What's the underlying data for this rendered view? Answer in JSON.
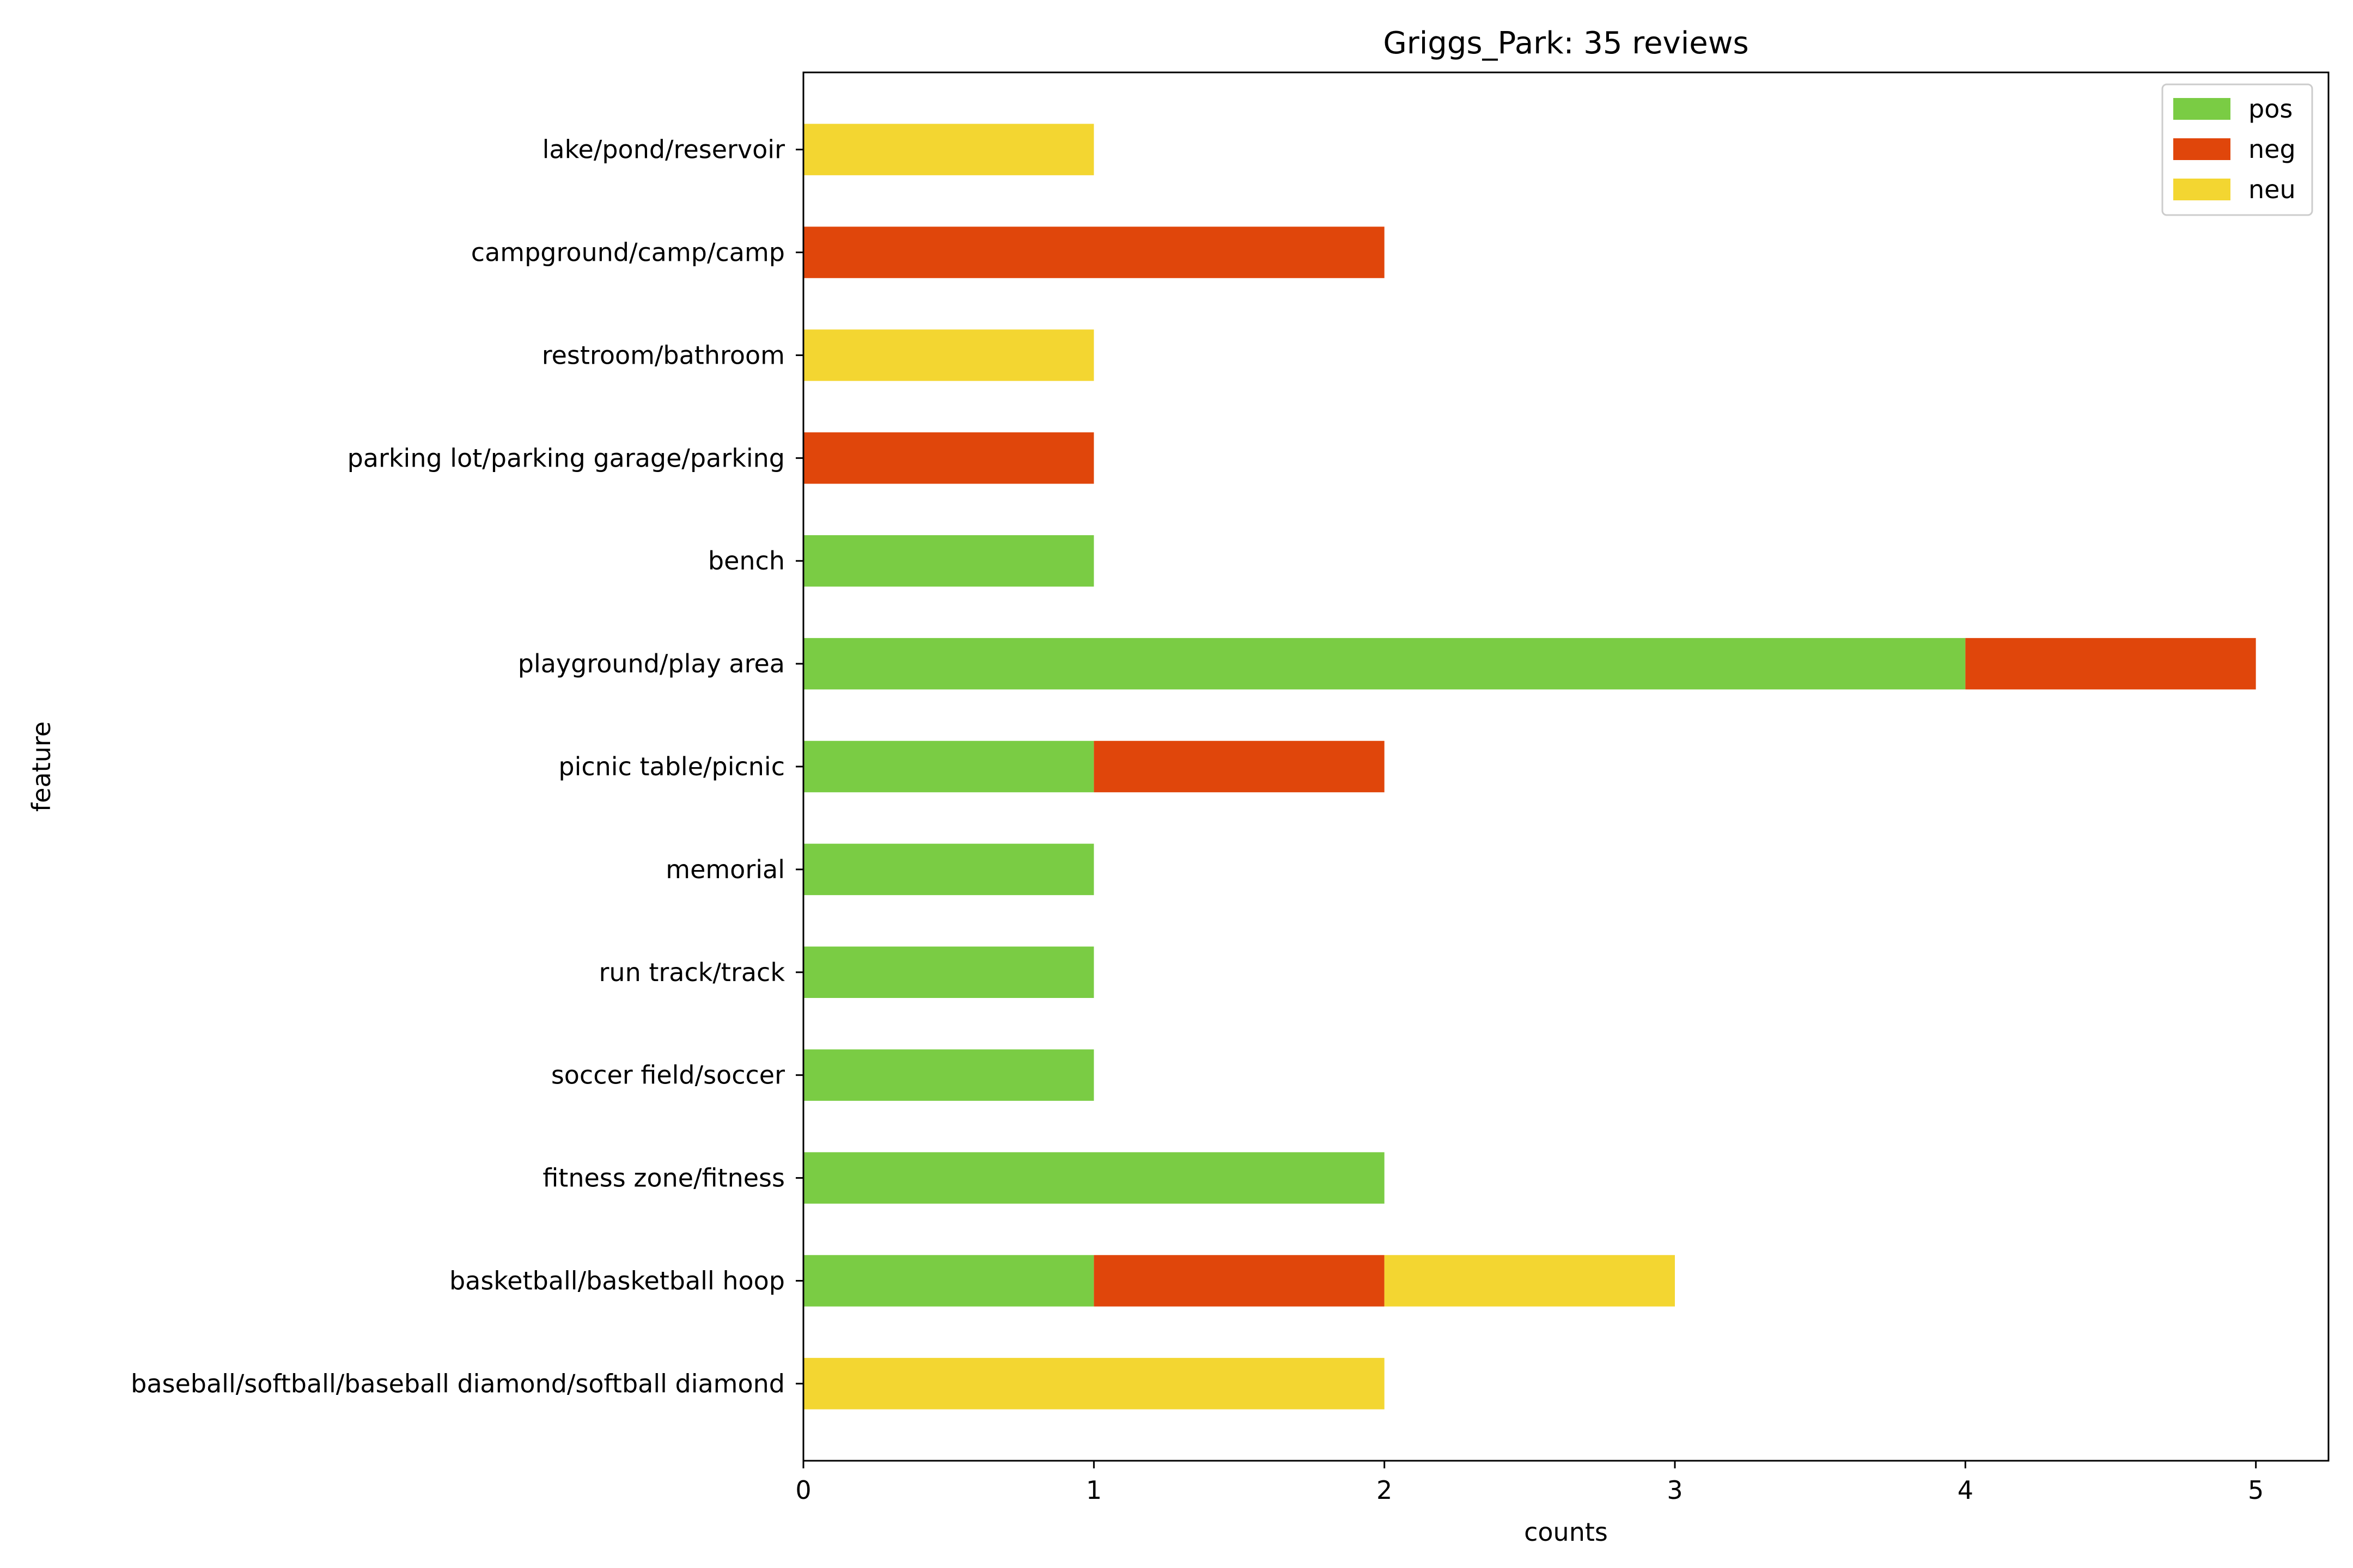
{
  "chart_data": {
    "type": "bar",
    "orientation": "horizontal",
    "stacked": true,
    "title": "Griggs_Park: 35 reviews",
    "xlabel": "counts",
    "ylabel": "feature",
    "xlim": [
      0,
      5.25
    ],
    "xticks": [
      0,
      1,
      2,
      3,
      4,
      5
    ],
    "grid": false,
    "legend_position": "top-right",
    "categories": [
      "baseball/softball/baseball diamond/softball diamond",
      "basketball/basketball hoop",
      "fitness zone/fitness",
      "soccer field/soccer",
      "run track/track",
      "memorial",
      "picnic table/picnic",
      "playground/play area",
      "bench",
      "parking lot/parking garage/parking",
      "restroom/bathroom",
      "campground/camp/camp",
      "lake/pond/reservoir"
    ],
    "series": [
      {
        "name": "pos",
        "color": "#7acc44",
        "values": [
          0,
          1,
          2,
          1,
          1,
          1,
          1,
          4,
          1,
          0,
          0,
          0,
          0
        ]
      },
      {
        "name": "neg",
        "color": "#e0460b",
        "values": [
          0,
          1,
          0,
          0,
          0,
          0,
          1,
          1,
          0,
          1,
          0,
          2,
          0
        ]
      },
      {
        "name": "neu",
        "color": "#f3d631",
        "values": [
          2,
          1,
          0,
          0,
          0,
          0,
          0,
          0,
          0,
          0,
          1,
          0,
          1
        ]
      }
    ]
  }
}
